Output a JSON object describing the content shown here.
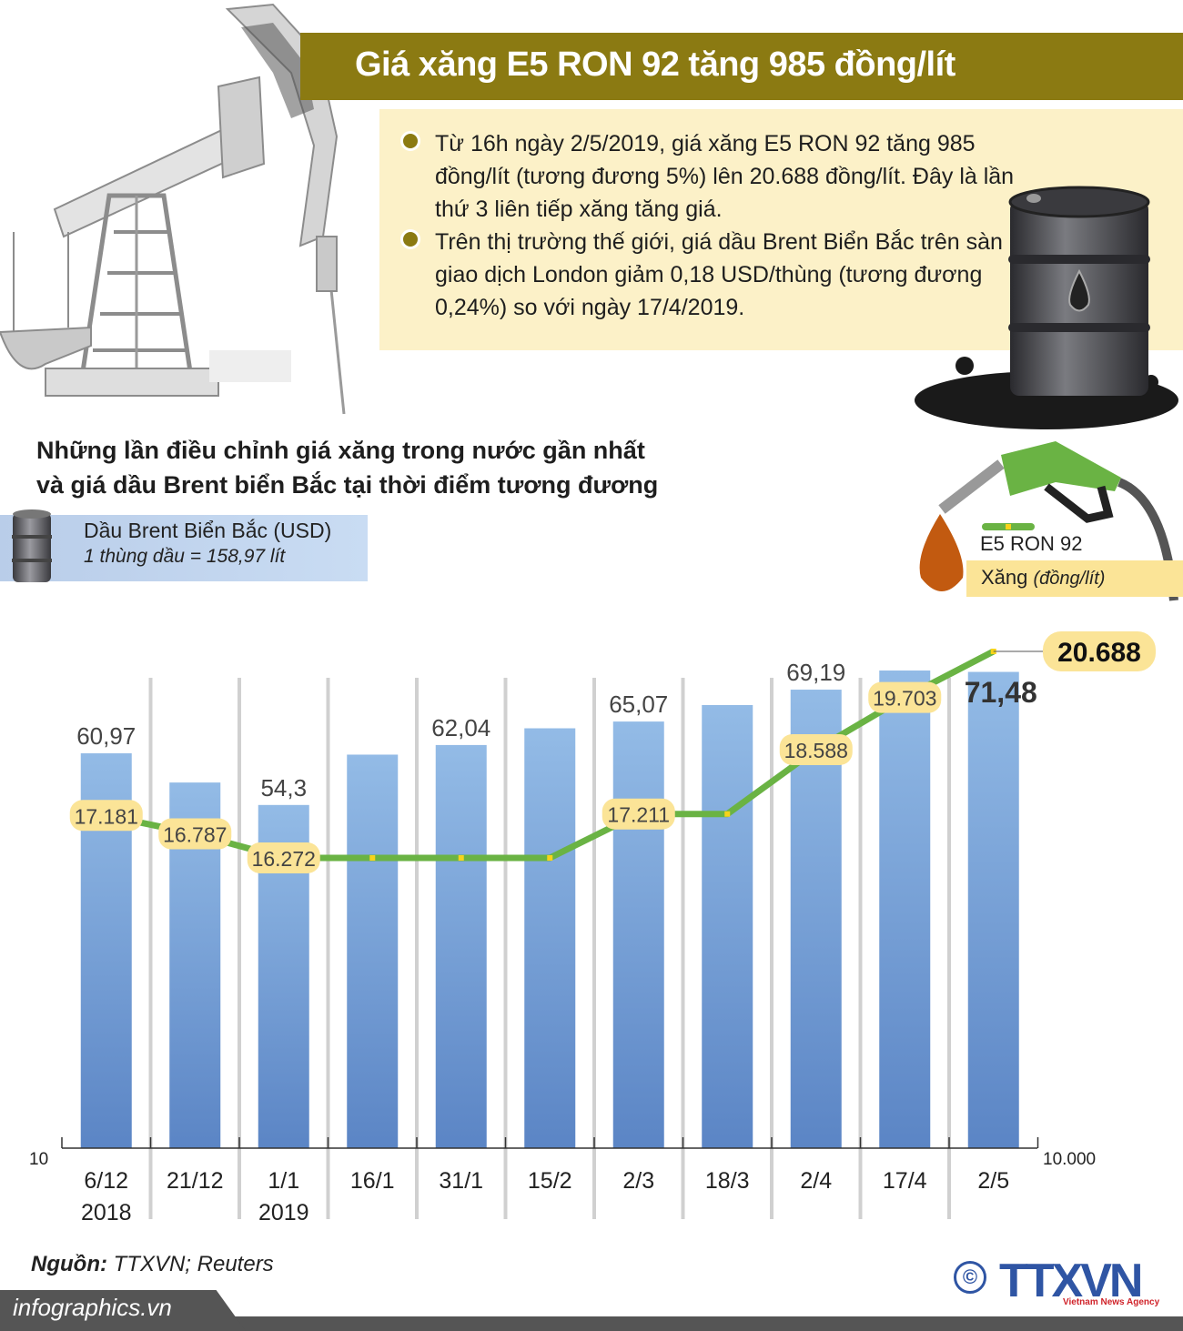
{
  "header": {
    "title": "Giá xăng E5 RON 92 tăng 985 đồng/lít"
  },
  "info": {
    "bullets": [
      "Từ 16h ngày 2/5/2019, giá xăng E5 RON 92 tăng 985 đồng/lít (tương đương 5%) lên 20.688 đồng/lít. Đây là lần thứ 3 liên tiếp xăng tăng giá.",
      "Trên thị trường thế giới, giá dầu Brent Biển Bắc trên sàn giao dịch London giảm 0,18 USD/thùng (tương đương 0,24%) so với ngày 17/4/2019."
    ]
  },
  "section": {
    "title_line1": "Những lần điều chỉnh giá xăng trong nước gần nhất",
    "title_line2": "và giá dầu Brent biển Bắc tại thời điểm tương đương"
  },
  "legend": {
    "brent_label": "Dầu Brent Biển Bắc (USD)",
    "brent_note": "1 thùng dầu = 158,97 lít",
    "ron_label": "E5 RON 92",
    "xang_label": "Xăng",
    "xang_unit": "(đồng/lít)"
  },
  "colors": {
    "title_bar": "#8b7a12",
    "info_bg": "#fcf1c8",
    "bar_top": "#93bbe6",
    "bar_bottom": "#5b85c5",
    "line": "#6ab344",
    "label_bg": "#fbe497",
    "marker": "#f7d31a"
  },
  "chart_data": {
    "type": "bar+line",
    "title": "Những lần điều chỉnh giá xăng trong nước gần nhất và giá dầu Brent biển Bắc tại thời điểm tương đương",
    "categories": [
      "6/12",
      "21/12",
      "1/1",
      "16/1",
      "31/1",
      "15/2",
      "2/3",
      "18/3",
      "2/4",
      "17/4",
      "2/5"
    ],
    "category_years": [
      "2018",
      "",
      "2019",
      "",
      "",
      "",
      "",
      "",
      "",
      "",
      ""
    ],
    "series": [
      {
        "name": "Dầu Brent Biển Bắc (USD)",
        "type": "bar",
        "axis": "left",
        "values": [
          60.97,
          57.2,
          54.3,
          60.8,
          62.04,
          64.2,
          65.07,
          67.2,
          69.19,
          71.66,
          71.48
        ],
        "labels": [
          "60,97",
          "",
          "54,3",
          "",
          "62,04",
          "",
          "65,07",
          "",
          "69,19",
          "",
          "71,48"
        ]
      },
      {
        "name": "E5 RON 92 Xăng (đồng/lít)",
        "type": "line",
        "axis": "right",
        "values": [
          17181,
          16787,
          16272,
          16272,
          16272,
          16272,
          17211,
          17211,
          18588,
          19703,
          20688
        ],
        "labels": [
          "17.181",
          "16.787",
          "16.272",
          "",
          "",
          "",
          "17.211",
          "",
          "18.588",
          "19.703",
          "20.688"
        ]
      }
    ],
    "left_axis_min_label": "10",
    "right_axis_min_label": "10.000",
    "grid": "vertical separators"
  },
  "footer": {
    "source_label": "Nguồn:",
    "source_value": "TTXVN; Reuters",
    "site": "infographics.vn",
    "logo_text": "TTXVN",
    "logo_sub": "Vietnam News Agency",
    "copyright": "©"
  }
}
